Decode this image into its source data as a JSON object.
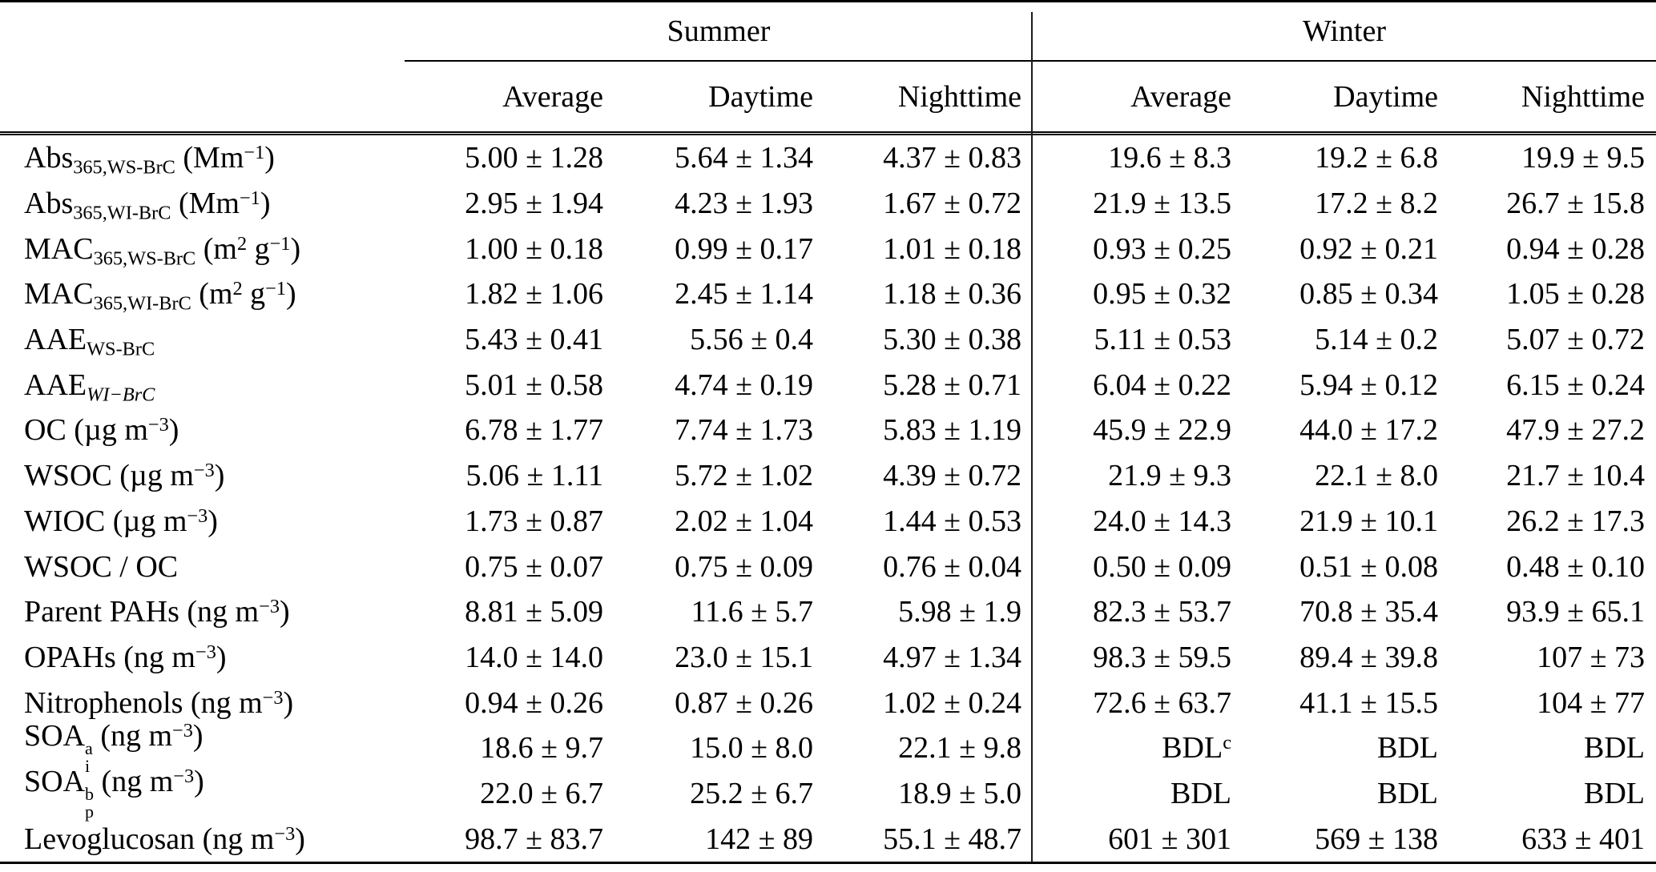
{
  "table": {
    "groups": [
      "Summer",
      "Winter"
    ],
    "columns": [
      "Average",
      "Daytime",
      "Nighttime",
      "Average",
      "Daytime",
      "Nighttime"
    ],
    "rows": [
      {
        "label": [
          {
            "t": "Abs"
          },
          {
            "t": "365,WS-BrC",
            "s": "sub"
          },
          {
            "t": " (Mm"
          },
          {
            "t": "−1",
            "s": "sup"
          },
          {
            "t": ")"
          }
        ],
        "values": [
          "5.00 ± 1.28",
          "5.64 ± 1.34",
          "4.37 ± 0.83",
          "19.6 ± 8.3",
          "19.2 ± 6.8",
          "19.9 ± 9.5"
        ]
      },
      {
        "label": [
          {
            "t": "Abs"
          },
          {
            "t": "365,WI-BrC",
            "s": "sub"
          },
          {
            "t": " (Mm"
          },
          {
            "t": "−1",
            "s": "sup"
          },
          {
            "t": ")"
          }
        ],
        "values": [
          "2.95 ± 1.94",
          "4.23 ± 1.93",
          "1.67 ± 0.72",
          "21.9 ± 13.5",
          "17.2 ± 8.2",
          "26.7 ± 15.8"
        ]
      },
      {
        "label": [
          {
            "t": "MAC"
          },
          {
            "t": "365,WS-BrC",
            "s": "sub"
          },
          {
            "t": " (m"
          },
          {
            "t": "2",
            "s": "sup"
          },
          {
            "t": " g"
          },
          {
            "t": "−1",
            "s": "sup"
          },
          {
            "t": ")"
          }
        ],
        "values": [
          "1.00 ± 0.18",
          "0.99 ± 0.17",
          "1.01 ± 0.18",
          "0.93 ± 0.25",
          "0.92 ± 0.21",
          "0.94 ± 0.28"
        ]
      },
      {
        "label": [
          {
            "t": "MAC"
          },
          {
            "t": "365,WI-BrC",
            "s": "sub"
          },
          {
            "t": " (m"
          },
          {
            "t": "2",
            "s": "sup"
          },
          {
            "t": " g"
          },
          {
            "t": "−1",
            "s": "sup"
          },
          {
            "t": ")"
          }
        ],
        "values": [
          "1.82 ± 1.06",
          "2.45 ± 1.14",
          "1.18 ± 0.36",
          "0.95 ± 0.32",
          "0.85 ± 0.34",
          "1.05 ± 0.28"
        ]
      },
      {
        "label": [
          {
            "t": "AAE"
          },
          {
            "t": "WS-BrC",
            "s": "sub"
          }
        ],
        "values": [
          "5.43 ± 0.41",
          "5.56 ± 0.4",
          "5.30 ± 0.38",
          "5.11 ± 0.53",
          "5.14 ± 0.2",
          "5.07 ± 0.72"
        ]
      },
      {
        "label": [
          {
            "t": "AAE"
          },
          {
            "t": "WI−BrC",
            "s": "sub",
            "italic": true
          }
        ],
        "values": [
          "5.01 ± 0.58",
          "4.74 ± 0.19",
          "5.28 ± 0.71",
          "6.04 ± 0.22",
          "5.94 ± 0.12",
          "6.15 ± 0.24"
        ]
      },
      {
        "label": [
          {
            "t": "OC (µg m"
          },
          {
            "t": "−3",
            "s": "sup"
          },
          {
            "t": ")"
          }
        ],
        "values": [
          "6.78 ± 1.77",
          "7.74 ± 1.73",
          "5.83 ± 1.19",
          "45.9 ± 22.9",
          "44.0 ± 17.2",
          "47.9 ± 27.2"
        ]
      },
      {
        "label": [
          {
            "t": "WSOC (µg m"
          },
          {
            "t": "−3",
            "s": "sup"
          },
          {
            "t": ")"
          }
        ],
        "values": [
          "5.06 ± 1.11",
          "5.72 ± 1.02",
          "4.39 ± 0.72",
          "21.9 ± 9.3",
          "22.1 ± 8.0",
          "21.7 ± 10.4"
        ]
      },
      {
        "label": [
          {
            "t": "WIOC (µg m"
          },
          {
            "t": "−3",
            "s": "sup"
          },
          {
            "t": ")"
          }
        ],
        "values": [
          "1.73 ± 0.87",
          "2.02 ± 1.04",
          "1.44 ± 0.53",
          "24.0 ± 14.3",
          "21.9 ± 10.1",
          "26.2 ± 17.3"
        ]
      },
      {
        "label": [
          {
            "t": "WSOC / OC"
          }
        ],
        "values": [
          "0.75 ± 0.07",
          "0.75 ± 0.09",
          "0.76 ± 0.04",
          "0.50 ± 0.09",
          "0.51 ± 0.08",
          "0.48 ± 0.10"
        ]
      },
      {
        "label": [
          {
            "t": "Parent PAHs (ng m"
          },
          {
            "t": "−3",
            "s": "sup"
          },
          {
            "t": ")"
          }
        ],
        "values": [
          "8.81 ± 5.09",
          "11.6 ± 5.7",
          "5.98 ± 1.9",
          "82.3 ± 53.7",
          "70.8 ± 35.4",
          "93.9 ± 65.1"
        ]
      },
      {
        "label": [
          {
            "t": "OPAHs (ng m"
          },
          {
            "t": "−3",
            "s": "sup"
          },
          {
            "t": ")"
          }
        ],
        "values": [
          "14.0 ± 14.0",
          "23.0 ± 15.1",
          "4.97 ± 1.34",
          "98.3 ± 59.5",
          "89.4 ± 39.8",
          "107 ± 73"
        ]
      },
      {
        "label": [
          {
            "t": "Nitrophenols (ng m"
          },
          {
            "t": "−3",
            "s": "sup"
          },
          {
            "t": ")"
          }
        ],
        "values": [
          "0.94 ± 0.26",
          "0.87 ± 0.26",
          "1.02 ± 0.24",
          "72.6 ± 63.7",
          "41.1 ± 15.5",
          "104 ± 77"
        ]
      },
      {
        "label": [
          {
            "t": "SOA"
          },
          {
            "s": "supsub",
            "sup": "a",
            "sub": "i"
          },
          {
            "t": " (ng m"
          },
          {
            "t": "−3",
            "s": "sup"
          },
          {
            "t": ")"
          }
        ],
        "values": [
          "18.6 ± 9.7",
          "15.0 ± 8.0",
          "22.1 ± 9.8",
          {
            "t": "BDL",
            "sup": "c"
          },
          "BDL",
          "BDL"
        ]
      },
      {
        "label": [
          {
            "t": "SOA"
          },
          {
            "s": "supsub",
            "sup": "b",
            "sub": "p"
          },
          {
            "t": " (ng m"
          },
          {
            "t": "−3",
            "s": "sup"
          },
          {
            "t": ")"
          }
        ],
        "values": [
          "22.0 ± 6.7",
          "25.2 ± 6.7",
          "18.9 ± 5.0",
          "BDL",
          "BDL",
          "BDL"
        ]
      },
      {
        "label": [
          {
            "t": "Levoglucosan (ng m"
          },
          {
            "t": "−3",
            "s": "sup"
          },
          {
            "t": ")"
          }
        ],
        "values": [
          "98.7 ± 83.7",
          "142 ± 89",
          "55.1 ± 48.7",
          "601 ± 301",
          "569 ± 138",
          "633 ± 401"
        ]
      }
    ]
  }
}
